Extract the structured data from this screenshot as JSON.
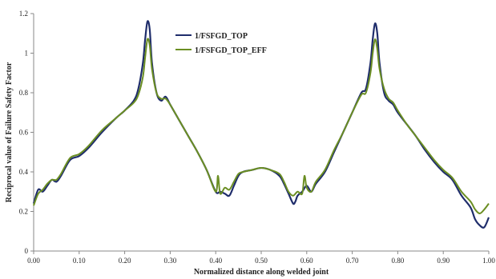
{
  "chart_data": {
    "type": "line",
    "xlabel": "Normalized  distance along welded joint",
    "ylabel": "Reciprocal value of Failure Safety Factor",
    "xlim": [
      0,
      1
    ],
    "ylim": [
      0,
      1.2
    ],
    "x_ticks": [
      "0.00",
      "0.10",
      "0.20",
      "0.30",
      "0.40",
      "0.50",
      "0.60",
      "0.70",
      "0.80",
      "0.90",
      "1.00"
    ],
    "y_ticks": [
      "0",
      "0.2",
      "0.4",
      "0.6",
      "0.8",
      "1",
      "1.2"
    ],
    "grid": false,
    "legend": "top-center",
    "series": [
      {
        "name": "1/FSFGD_TOP",
        "color": "#1f2d6b",
        "x": [
          0.0,
          0.01,
          0.02,
          0.03,
          0.04,
          0.05,
          0.06,
          0.08,
          0.1,
          0.12,
          0.15,
          0.18,
          0.2,
          0.22,
          0.23,
          0.24,
          0.245,
          0.25,
          0.255,
          0.26,
          0.27,
          0.28,
          0.29,
          0.3,
          0.32,
          0.34,
          0.36,
          0.38,
          0.4,
          0.41,
          0.42,
          0.43,
          0.44,
          0.45,
          0.46,
          0.48,
          0.5,
          0.52,
          0.54,
          0.55,
          0.56,
          0.57,
          0.575,
          0.58,
          0.59,
          0.6,
          0.61,
          0.62,
          0.64,
          0.66,
          0.68,
          0.7,
          0.72,
          0.73,
          0.74,
          0.745,
          0.75,
          0.755,
          0.76,
          0.77,
          0.78,
          0.79,
          0.8,
          0.82,
          0.84,
          0.86,
          0.88,
          0.9,
          0.92,
          0.94,
          0.96,
          0.97,
          0.98,
          0.99,
          1.0
        ],
        "values": [
          0.24,
          0.31,
          0.3,
          0.33,
          0.36,
          0.35,
          0.38,
          0.46,
          0.48,
          0.52,
          0.6,
          0.67,
          0.71,
          0.76,
          0.82,
          0.95,
          1.07,
          1.16,
          1.12,
          0.95,
          0.8,
          0.76,
          0.78,
          0.74,
          0.66,
          0.58,
          0.5,
          0.41,
          0.3,
          0.3,
          0.29,
          0.28,
          0.33,
          0.38,
          0.4,
          0.41,
          0.42,
          0.41,
          0.38,
          0.34,
          0.29,
          0.24,
          0.25,
          0.28,
          0.3,
          0.33,
          0.3,
          0.34,
          0.4,
          0.5,
          0.6,
          0.7,
          0.8,
          0.82,
          0.95,
          1.07,
          1.15,
          1.1,
          0.95,
          0.8,
          0.76,
          0.74,
          0.7,
          0.64,
          0.58,
          0.51,
          0.45,
          0.4,
          0.36,
          0.28,
          0.22,
          0.16,
          0.13,
          0.12,
          0.17
        ]
      },
      {
        "name": "1/FSFGD_TOP_EFF",
        "color": "#6b8e23",
        "x": [
          0.0,
          0.01,
          0.02,
          0.03,
          0.04,
          0.05,
          0.06,
          0.08,
          0.1,
          0.12,
          0.15,
          0.18,
          0.2,
          0.22,
          0.23,
          0.24,
          0.245,
          0.25,
          0.255,
          0.26,
          0.27,
          0.28,
          0.29,
          0.3,
          0.32,
          0.34,
          0.36,
          0.38,
          0.4,
          0.405,
          0.41,
          0.42,
          0.43,
          0.44,
          0.45,
          0.46,
          0.48,
          0.5,
          0.52,
          0.54,
          0.55,
          0.56,
          0.57,
          0.58,
          0.59,
          0.595,
          0.6,
          0.61,
          0.62,
          0.64,
          0.66,
          0.68,
          0.7,
          0.72,
          0.73,
          0.74,
          0.745,
          0.75,
          0.755,
          0.76,
          0.77,
          0.78,
          0.79,
          0.8,
          0.82,
          0.84,
          0.86,
          0.88,
          0.9,
          0.92,
          0.94,
          0.96,
          0.97,
          0.98,
          0.99,
          1.0
        ],
        "values": [
          0.23,
          0.29,
          0.31,
          0.34,
          0.36,
          0.36,
          0.39,
          0.47,
          0.49,
          0.53,
          0.61,
          0.67,
          0.71,
          0.75,
          0.79,
          0.88,
          0.98,
          1.07,
          1.04,
          0.92,
          0.8,
          0.77,
          0.77,
          0.74,
          0.66,
          0.58,
          0.5,
          0.41,
          0.3,
          0.38,
          0.29,
          0.32,
          0.31,
          0.35,
          0.39,
          0.4,
          0.41,
          0.42,
          0.41,
          0.39,
          0.35,
          0.3,
          0.28,
          0.3,
          0.29,
          0.38,
          0.32,
          0.3,
          0.35,
          0.41,
          0.51,
          0.6,
          0.7,
          0.79,
          0.8,
          0.9,
          1.0,
          1.07,
          1.02,
          0.92,
          0.82,
          0.77,
          0.75,
          0.71,
          0.64,
          0.58,
          0.52,
          0.46,
          0.41,
          0.37,
          0.3,
          0.25,
          0.21,
          0.19,
          0.21,
          0.24
        ]
      }
    ]
  }
}
